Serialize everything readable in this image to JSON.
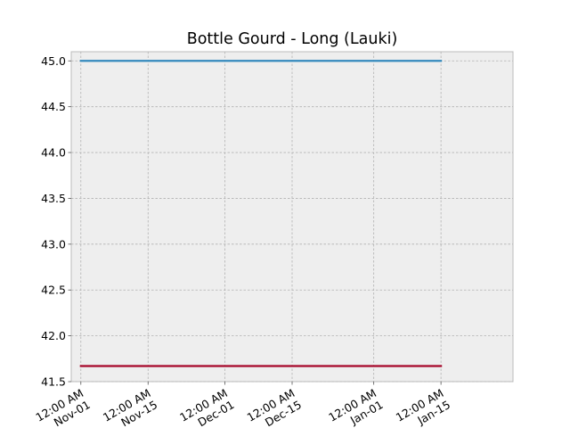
{
  "chart_data": {
    "type": "line",
    "title": "Bottle Gourd - Long (Lauki)",
    "xlabel": "",
    "ylabel": "",
    "x_ticks": [
      {
        "date": "2019-11-01",
        "label_line1": "12:00 AM",
        "label_line2": "Nov-01"
      },
      {
        "date": "2019-11-15",
        "label_line1": "12:00 AM",
        "label_line2": "Nov-15"
      },
      {
        "date": "2019-12-01",
        "label_line1": "12:00 AM",
        "label_line2": "Dec-01"
      },
      {
        "date": "2019-12-15",
        "label_line1": "12:00 AM",
        "label_line2": "Dec-15"
      },
      {
        "date": "2020-01-01",
        "label_line1": "12:00 AM",
        "label_line2": "Jan-01"
      },
      {
        "date": "2020-01-15",
        "label_line1": "12:00 AM",
        "label_line2": "Jan-15"
      }
    ],
    "x_range": [
      "2019-10-30",
      "2020-01-30"
    ],
    "ylim": [
      41.5,
      45.1
    ],
    "y_ticks": [
      41.5,
      42.0,
      42.5,
      43.0,
      43.5,
      44.0,
      44.5,
      45.0
    ],
    "grid": true,
    "series": [
      {
        "color": "#348ABD",
        "points": [
          {
            "x": "2019-11-01",
            "y": 45.0
          },
          {
            "x": "2020-01-15",
            "y": 45.0
          }
        ]
      },
      {
        "color": "#A60628",
        "points": [
          {
            "x": "2019-11-01",
            "y": 41.67
          },
          {
            "x": "2020-01-15",
            "y": 41.67
          }
        ]
      }
    ],
    "background_color": "#EEEEEE",
    "grid_color": "#B2B2B2"
  }
}
